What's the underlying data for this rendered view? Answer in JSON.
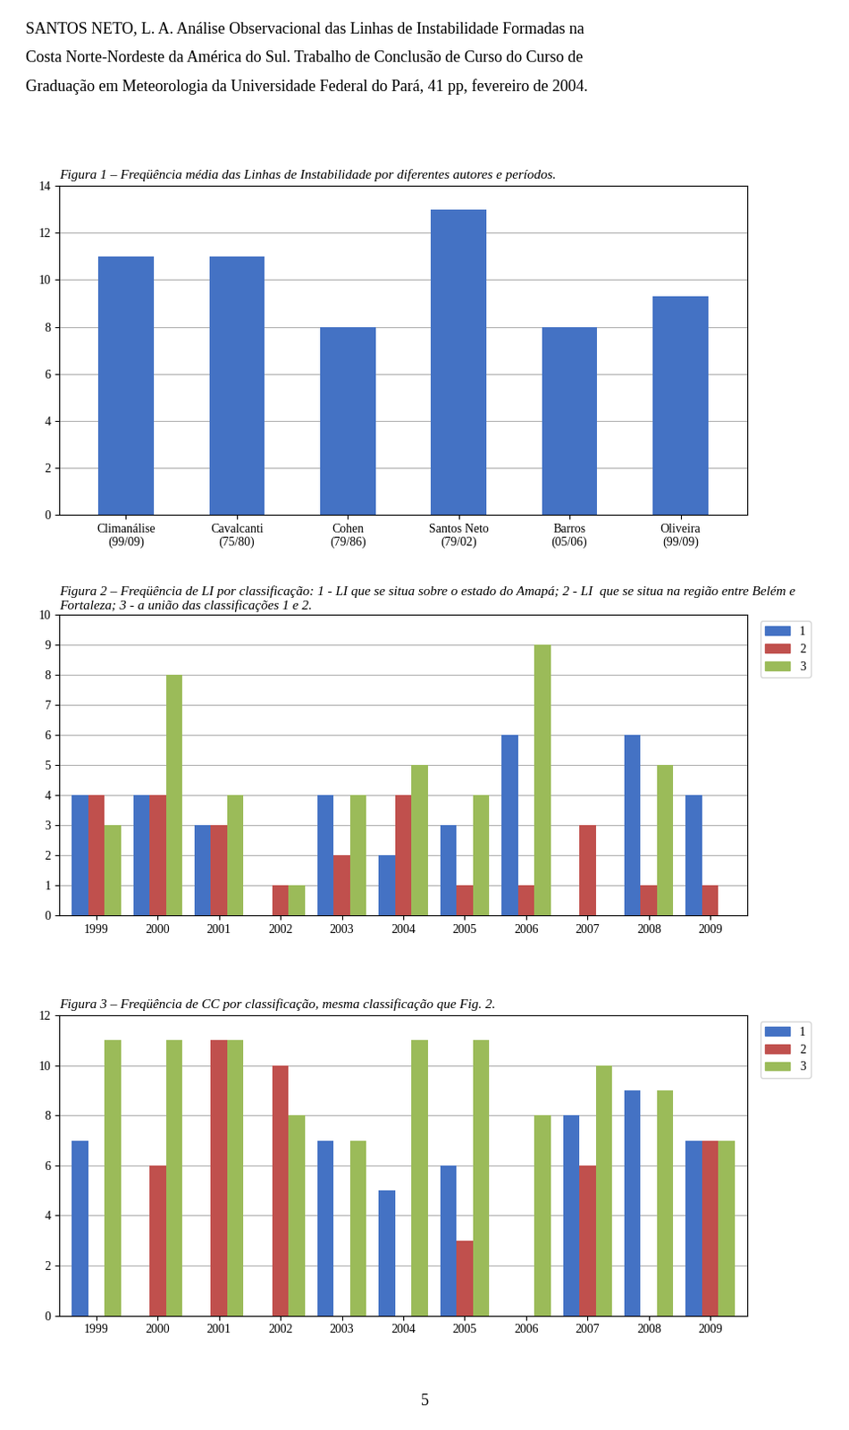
{
  "header": [
    "SANTOS NETO, L. A. Análise Observacional das Linhas de Instabilidade Formadas na",
    "Costa Norte-Nordeste da América do Sul. Trabalho de Conclusão de Curso do Curso de",
    "Graduação em Meteorologia da Universidade Federal do Pará, 41 pp, fevereiro de 2004."
  ],
  "footer": "5",
  "chart_data": [
    {
      "type": "bar",
      "title": "Figura 1 – Freqüência média das Linhas de Instabilidade por diferentes autores e períodos.",
      "categories": [
        "Climanálise\n(99/09)",
        "Cavalcanti\n(75/80)",
        "Cohen\n(79/86)",
        "Santos Neto\n(79/02)",
        "Barros\n(05/06)",
        "Oliveira\n(99/09)"
      ],
      "values": [
        11.0,
        11.0,
        8.0,
        13.0,
        8.0,
        9.3
      ],
      "color": "#4472C4",
      "ylim": [
        0,
        14
      ],
      "yticks": [
        0,
        2,
        4,
        6,
        8,
        10,
        12,
        14
      ],
      "grid": true
    },
    {
      "type": "bar",
      "title": "Figura 2 – Freqüência de LI por classificação: 1 - LI que se situa sobre o estado do Amapá; 2 - LI  que se situa na região entre Belém e Fortaleza; 3 - a união das classificações 1 e 2.",
      "categories": [
        "1999",
        "2000",
        "2001",
        "2002",
        "2003",
        "2004",
        "2005",
        "2006",
        "2007",
        "2008",
        "2009"
      ],
      "series": [
        {
          "name": "1",
          "color": "#4472C4",
          "values": [
            4,
            4,
            3,
            0,
            4,
            2,
            3,
            6,
            0,
            6,
            4
          ]
        },
        {
          "name": "2",
          "color": "#C0504D",
          "values": [
            4,
            4,
            3,
            1,
            2,
            4,
            1,
            1,
            3,
            1,
            1
          ]
        },
        {
          "name": "3",
          "color": "#9BBB59",
          "values": [
            3,
            8,
            4,
            1,
            4,
            5,
            4,
            9,
            0,
            5,
            0
          ]
        }
      ],
      "ylim": [
        0,
        10
      ],
      "yticks": [
        0,
        1,
        2,
        3,
        4,
        5,
        6,
        7,
        8,
        9,
        10
      ],
      "grid": true,
      "legend": "upper right"
    },
    {
      "type": "bar",
      "title": "Figura 3 – Freqüência de CC por classificação, mesma classificação que Fig. 2.",
      "categories": [
        "1999",
        "2000",
        "2001",
        "2002",
        "2003",
        "2004",
        "2005",
        "2006",
        "2007",
        "2008",
        "2009"
      ],
      "series": [
        {
          "name": "1",
          "color": "#4472C4",
          "values": [
            7,
            0,
            0,
            0,
            7,
            5,
            6,
            0,
            8,
            9,
            7
          ]
        },
        {
          "name": "2",
          "color": "#C0504D",
          "values": [
            0,
            6,
            11,
            10,
            0,
            0,
            3,
            0,
            6,
            0,
            7
          ]
        },
        {
          "name": "3",
          "color": "#9BBB59",
          "values": [
            11,
            11,
            11,
            8,
            7,
            11,
            11,
            8,
            10,
            9,
            7
          ]
        }
      ],
      "ylim": [
        0,
        12
      ],
      "yticks": [
        0,
        2,
        4,
        6,
        8,
        10,
        12
      ],
      "grid": true,
      "legend": "upper right"
    }
  ]
}
